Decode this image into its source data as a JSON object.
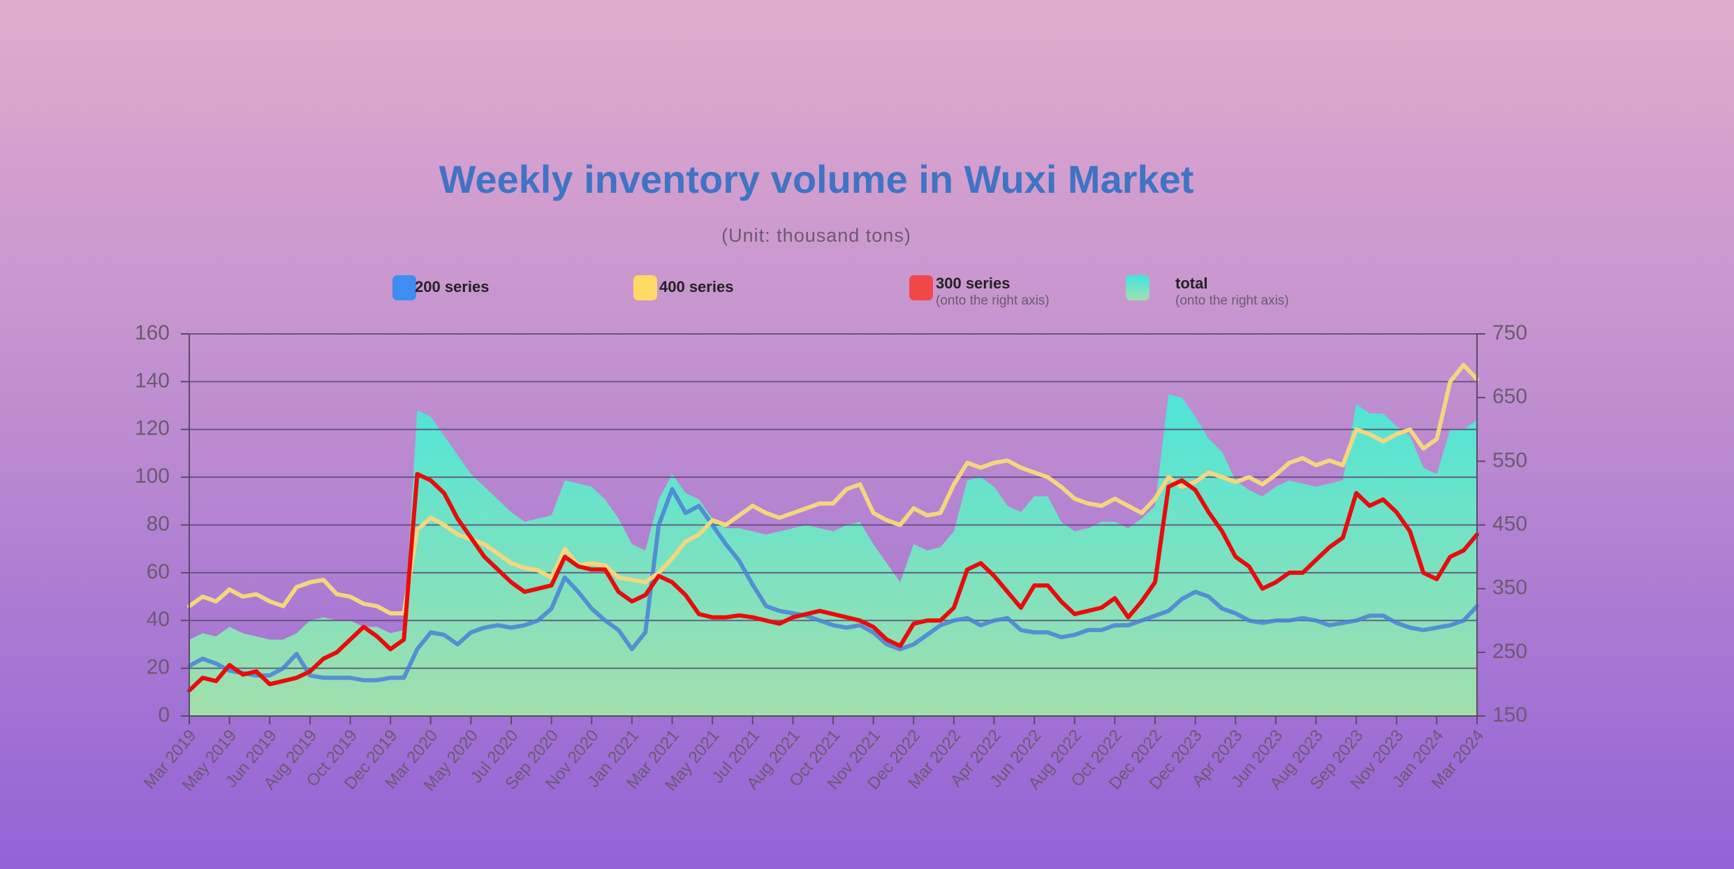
{
  "chart_data": {
    "type": "line",
    "title": "Weekly inventory volume in Wuxi Market",
    "subtitle": "(Unit: thousand tons)",
    "categories": [
      "Mar 2019",
      null,
      null,
      "May 2019",
      null,
      null,
      "Jun 2019",
      null,
      null,
      "Aug 2019",
      null,
      null,
      "Oct 2019",
      null,
      null,
      "Dec 2019",
      null,
      null,
      "Mar 2020",
      null,
      null,
      "May 2020",
      null,
      null,
      "Jul 2020",
      null,
      null,
      "Sep 2020",
      null,
      null,
      "Nov 2020",
      null,
      null,
      "Jan 2021",
      null,
      null,
      "Mar 2021",
      null,
      null,
      "May 2021",
      null,
      null,
      "Jul 2021",
      null,
      null,
      "Aug 2021",
      null,
      null,
      "Oct 2021",
      null,
      null,
      "Nov 2021",
      null,
      null,
      "Dec 2022",
      null,
      null,
      "Mar 2022",
      null,
      null,
      "Apr 2022",
      null,
      null,
      "Jun 2022",
      null,
      null,
      "Aug 2022",
      null,
      null,
      "Oct 2022",
      null,
      null,
      "Dec 2022",
      null,
      null,
      "Dec 2023",
      null,
      null,
      "Apr 2023",
      null,
      null,
      "Jun 2023",
      null,
      null,
      "Aug 2023",
      null,
      null,
      "Sep 2023",
      null,
      null,
      "Nov 2023",
      null,
      null,
      "Jan 2024",
      null,
      null,
      "Mar 2024"
    ],
    "series": [
      {
        "name": "200 series",
        "color": "#4a80d8",
        "legend_color": "#3d8ef0",
        "values": [
          21,
          24,
          22,
          19,
          18,
          17,
          17,
          20,
          26,
          17,
          16,
          16,
          16,
          15,
          15,
          16,
          16,
          28,
          35,
          34,
          30,
          35,
          37,
          38,
          37,
          38,
          40,
          45,
          58,
          52,
          45,
          40,
          36,
          28,
          35,
          80,
          95,
          85,
          88,
          80,
          72,
          65,
          55,
          46,
          44,
          43,
          42,
          40,
          38,
          37,
          38,
          35,
          30,
          28,
          30,
          34,
          38,
          40,
          41,
          38,
          40,
          41,
          36,
          35,
          35,
          33,
          34,
          36,
          36,
          38,
          38,
          40,
          42,
          44,
          49,
          52,
          50,
          45,
          43,
          40,
          39,
          40,
          40,
          41,
          40,
          38,
          39,
          40,
          42,
          42,
          39,
          37,
          36,
          37,
          38,
          40,
          46
        ]
      },
      {
        "name": "400 series",
        "color": "#f4d67e",
        "legend_color": "#ffd966",
        "values": [
          46,
          50,
          48,
          53,
          50,
          51,
          48,
          46,
          54,
          56,
          57,
          51,
          50,
          47,
          46,
          43,
          43,
          78,
          83,
          80,
          76,
          74,
          72,
          68,
          64,
          62,
          61,
          58,
          70,
          63,
          64,
          63,
          58,
          57,
          56,
          60,
          66,
          73,
          76,
          82,
          80,
          84,
          88,
          85,
          83,
          85,
          87,
          89,
          89,
          95,
          97,
          85,
          82,
          80,
          87,
          84,
          85,
          97,
          106,
          104,
          106,
          107,
          104,
          102,
          100,
          96,
          91,
          89,
          88,
          91,
          88,
          85,
          91,
          100,
          96,
          98,
          102,
          100,
          98,
          100,
          97,
          101,
          106,
          108,
          105,
          107,
          105,
          120,
          118,
          115,
          118,
          120,
          112,
          116,
          140,
          147,
          141
        ]
      },
      {
        "name": "300 series",
        "note": "(onto the right axis)",
        "axis": "y2",
        "color": "#e80c0c",
        "legend_color": "#f04848",
        "values": [
          190,
          210,
          205,
          230,
          215,
          220,
          200,
          205,
          210,
          220,
          240,
          250,
          270,
          290,
          275,
          255,
          270,
          530,
          520,
          500,
          460,
          430,
          400,
          380,
          360,
          345,
          350,
          355,
          400,
          385,
          380,
          380,
          345,
          330,
          340,
          370,
          360,
          340,
          310,
          305,
          305,
          308,
          305,
          300,
          295,
          305,
          310,
          315,
          310,
          305,
          300,
          290,
          270,
          260,
          295,
          300,
          300,
          320,
          380,
          390,
          370,
          345,
          320,
          355,
          355,
          330,
          310,
          315,
          320,
          335,
          305,
          330,
          360,
          510,
          520,
          505,
          470,
          440,
          400,
          385,
          350,
          360,
          375,
          375,
          395,
          415,
          430,
          500,
          480,
          490,
          470,
          440,
          375,
          365,
          400,
          410,
          435
        ]
      },
      {
        "name": "total",
        "note": "(onto the right axis)",
        "axis": "y2",
        "area": true,
        "color": "#3ee6e0",
        "gradient_end": "#a3dfac",
        "values": [
          270,
          280,
          275,
          290,
          280,
          275,
          270,
          270,
          280,
          300,
          305,
          300,
          300,
          290,
          290,
          280,
          285,
          630,
          620,
          590,
          560,
          530,
          510,
          490,
          470,
          455,
          460,
          465,
          520,
          515,
          510,
          490,
          460,
          420,
          410,
          490,
          530,
          500,
          490,
          460,
          445,
          445,
          440,
          435,
          440,
          445,
          450,
          445,
          440,
          450,
          455,
          420,
          390,
          360,
          420,
          410,
          415,
          440,
          520,
          525,
          510,
          480,
          470,
          495,
          495,
          455,
          440,
          445,
          455,
          455,
          445,
          460,
          480,
          655,
          650,
          620,
          585,
          565,
          520,
          505,
          495,
          510,
          520,
          515,
          510,
          515,
          520,
          640,
          625,
          625,
          605,
          590,
          540,
          530,
          600,
          600,
          615
        ]
      }
    ],
    "ylim": [
      0,
      160
    ],
    "yticks": [
      0,
      20,
      40,
      60,
      80,
      100,
      120,
      140,
      160
    ],
    "y2lim": [
      150,
      750
    ],
    "y2ticks": [
      150,
      250,
      350,
      450,
      550,
      650,
      750
    ],
    "grid": true
  }
}
